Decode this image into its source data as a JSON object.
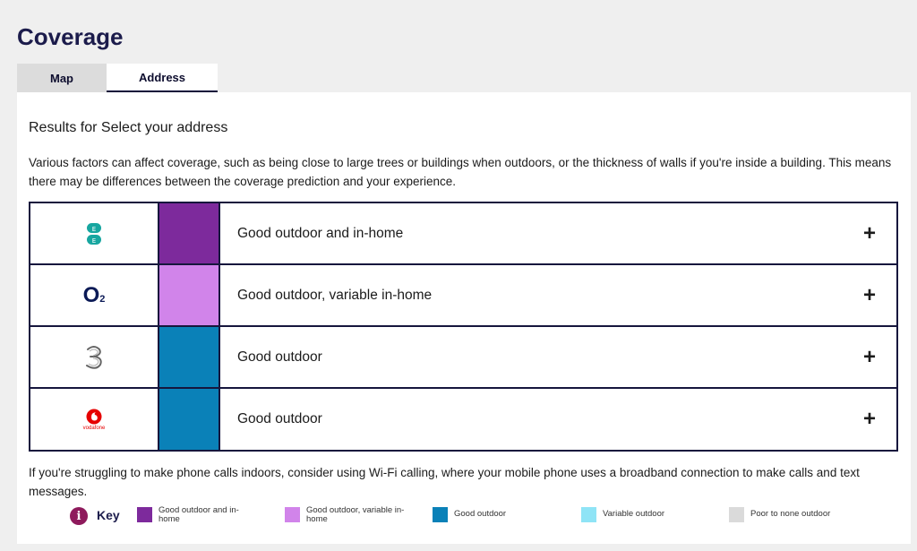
{
  "page": {
    "title": "Coverage"
  },
  "tabs": [
    {
      "label": "Map",
      "active": false
    },
    {
      "label": "Address",
      "active": true
    }
  ],
  "results": {
    "title": "Results for Select your address",
    "intro": "Various factors can affect coverage, such as being close to large trees or buildings when outdoors, or the thickness of walls if you're inside a building. This means there may be differences between the coverage prediction and your experience."
  },
  "networks": [
    {
      "logo": "ee-logo-icon",
      "color": "#7d2a9c",
      "label": "Good outdoor and in-home",
      "expand": "+"
    },
    {
      "logo": "o2-logo-icon",
      "color": "#d184ea",
      "label": "Good outdoor, variable in-home",
      "expand": "+"
    },
    {
      "logo": "three-logo-icon",
      "color": "#0a81b8",
      "label": "Good outdoor",
      "expand": "+"
    },
    {
      "logo": "vodafone-logo-icon",
      "color": "#0a81b8",
      "label": "Good outdoor",
      "expand": "+"
    }
  ],
  "logos": {
    "o2_text": "O",
    "o2_sub": "2",
    "vodafone_text": "vodafone"
  },
  "wifi_note": "If you're struggling to make phone calls indoors, consider using Wi-Fi calling, where your mobile phone uses a broadband connection to make calls and text messages.",
  "key": {
    "label": "Key",
    "icon": "info-icon",
    "icon_text": "i",
    "items": [
      {
        "color": "#7d2a9c",
        "text": "Good outdoor and in-home"
      },
      {
        "color": "#d184ea",
        "text": "Good outdoor, variable in-home"
      },
      {
        "color": "#0a81b8",
        "text": "Good outdoor"
      },
      {
        "color": "#8fe4f6",
        "text": "Variable outdoor"
      },
      {
        "color": "#dadada",
        "text": "Poor to none outdoor"
      }
    ]
  }
}
